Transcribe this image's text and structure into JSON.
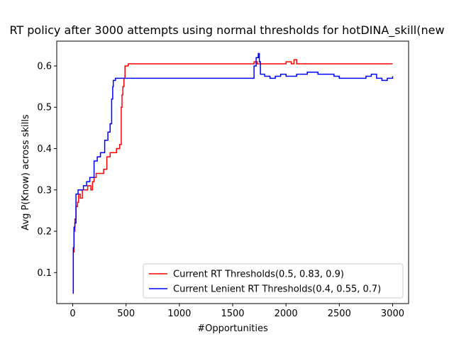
{
  "chart_data": {
    "type": "line",
    "title": "RT policy after 3000 attempts using normal thresholds for hotDINA_skill(new",
    "xlabel": "#Opportunities",
    "ylabel": "Avg P(Know) across skills",
    "xlim": [
      -150,
      3150
    ],
    "ylim": [
      0.025,
      0.66
    ],
    "xticks": [
      0,
      500,
      1000,
      1500,
      2000,
      2500,
      3000
    ],
    "xtick_labels": [
      "0",
      "500",
      "1000",
      "1500",
      "2000",
      "2500",
      "3000"
    ],
    "yticks": [
      0.1,
      0.2,
      0.3,
      0.4,
      0.5,
      0.6
    ],
    "ytick_labels": [
      "0.1",
      "0.2",
      "0.3",
      "0.4",
      "0.5",
      "0.6"
    ],
    "grid": false,
    "legend_position": "lower-right",
    "series": [
      {
        "name": "Current RT Thresholds(0.5, 0.83, 0.9)",
        "color": "#ff0000",
        "x": [
          0,
          5,
          12,
          20,
          30,
          45,
          55,
          70,
          90,
          110,
          140,
          170,
          185,
          200,
          220,
          250,
          290,
          320,
          350,
          380,
          410,
          440,
          455,
          462,
          470,
          480,
          490,
          520,
          600,
          800,
          1000,
          1200,
          1400,
          1600,
          1700,
          1730,
          1800,
          1900,
          2000,
          2050,
          2075,
          2100,
          2200,
          2350,
          2500,
          2700,
          2850,
          3000
        ],
        "values": [
          0.05,
          0.15,
          0.2,
          0.23,
          0.26,
          0.27,
          0.29,
          0.28,
          0.3,
          0.3,
          0.31,
          0.3,
          0.32,
          0.33,
          0.34,
          0.34,
          0.35,
          0.38,
          0.39,
          0.39,
          0.4,
          0.41,
          0.5,
          0.53,
          0.55,
          0.57,
          0.6,
          0.605,
          0.605,
          0.605,
          0.605,
          0.605,
          0.605,
          0.605,
          0.61,
          0.605,
          0.605,
          0.605,
          0.61,
          0.605,
          0.615,
          0.605,
          0.605,
          0.605,
          0.605,
          0.605,
          0.605,
          0.605
        ]
      },
      {
        "name": "Current Lenient RT Thresholds(0.4, 0.55, 0.7)",
        "color": "#0000ff",
        "x": [
          0,
          5,
          12,
          20,
          30,
          50,
          70,
          100,
          130,
          160,
          200,
          230,
          260,
          300,
          330,
          350,
          365,
          375,
          380,
          400,
          450,
          500,
          600,
          800,
          1000,
          1200,
          1400,
          1600,
          1680,
          1700,
          1720,
          1740,
          1750,
          1760,
          1800,
          1850,
          1900,
          1950,
          2000,
          2100,
          2200,
          2300,
          2400,
          2450,
          2500,
          2600,
          2700,
          2750,
          2800,
          2850,
          2900,
          2950,
          3000
        ],
        "values": [
          0.05,
          0.16,
          0.21,
          0.22,
          0.29,
          0.3,
          0.3,
          0.31,
          0.32,
          0.33,
          0.37,
          0.38,
          0.39,
          0.42,
          0.44,
          0.46,
          0.52,
          0.55,
          0.565,
          0.57,
          0.57,
          0.57,
          0.57,
          0.57,
          0.57,
          0.57,
          0.57,
          0.57,
          0.57,
          0.6,
          0.62,
          0.63,
          0.61,
          0.58,
          0.575,
          0.57,
          0.575,
          0.58,
          0.575,
          0.58,
          0.585,
          0.58,
          0.58,
          0.575,
          0.57,
          0.57,
          0.57,
          0.575,
          0.58,
          0.57,
          0.565,
          0.57,
          0.575
        ]
      }
    ]
  }
}
